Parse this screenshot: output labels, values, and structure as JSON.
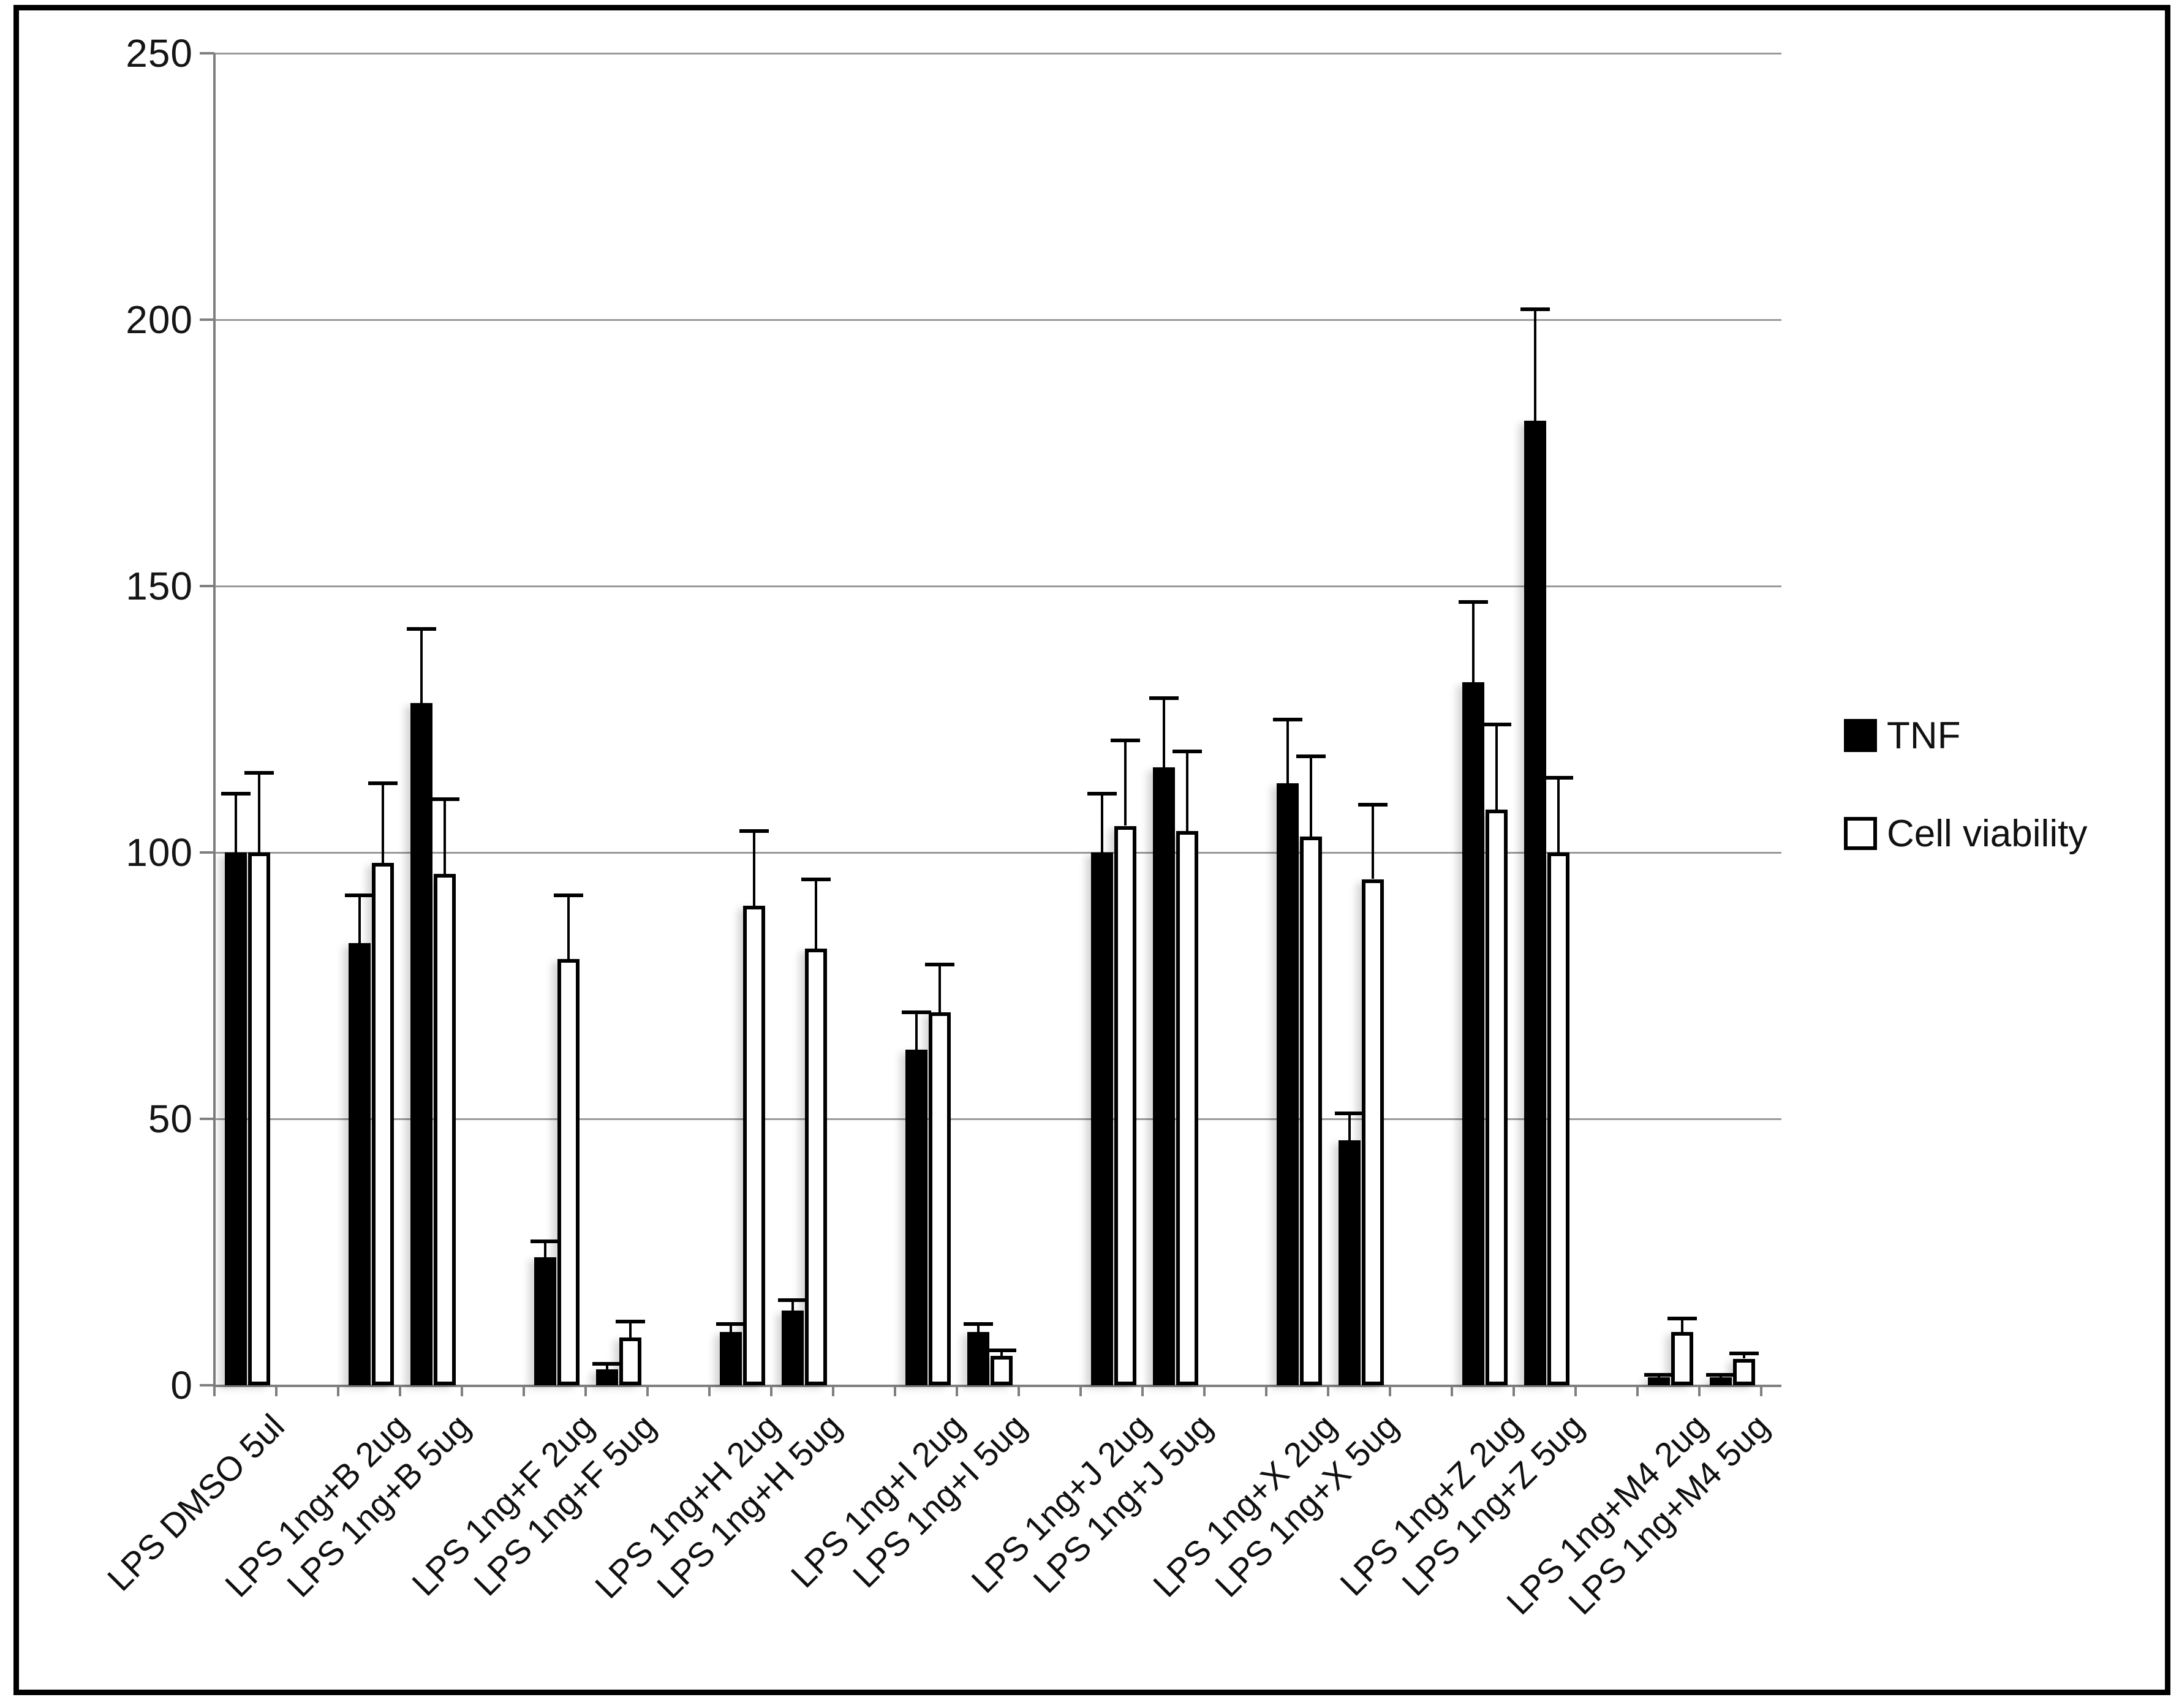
{
  "figure": {
    "background": "#ffffff",
    "frame_color": "#000000",
    "gridline_color": "#9a9a9a",
    "axis_color": "#7f7f7f"
  },
  "legend": {
    "items": [
      {
        "label": "TNF",
        "fill": "#000000",
        "border": "#000000"
      },
      {
        "label": "Cell viability",
        "fill": "#ffffff",
        "border": "#000000"
      }
    ]
  },
  "y_axis": {
    "tick_labels": [
      "0",
      "50",
      "100",
      "150",
      "200",
      "250"
    ]
  },
  "chart_data": {
    "type": "bar",
    "title": "",
    "xlabel": "",
    "ylabel": "",
    "ylim": [
      0,
      250
    ],
    "y_ticks": [
      0,
      50,
      100,
      150,
      200,
      250
    ],
    "grid": true,
    "legend_position": "right",
    "error_bars": "plus_direction",
    "categories": [
      "LPS DMSO 5ul",
      "LPS 1ng+B 2ug",
      "LPS 1ng+B 5ug",
      "LPS 1ng+F 2ug",
      "LPS 1ng+F 5ug",
      "LPS 1ng+H 2ug",
      "LPS 1ng+H 5ug",
      "LPS 1ng+I 2ug",
      "LPS 1ng+I 5ug",
      "LPS 1ng+J 2ug",
      "LPS 1ng+J 5ug",
      "LPS 1ng+X 2ug",
      "LPS 1ng+X 5ug",
      "LPS 1ng+Z 2ug",
      "LPS 1ng+Z 5ug",
      "LPS 1ng+M4 2ug",
      "LPS 1ng+M4 5ug"
    ],
    "series": [
      {
        "name": "TNF",
        "fill": "#000000",
        "values": [
          100,
          83,
          128,
          24,
          3,
          10,
          14,
          63,
          10,
          100,
          116,
          113,
          46,
          132,
          181,
          1.5,
          1.5
        ],
        "errors_plus": [
          11,
          9,
          14,
          3,
          1,
          1.5,
          2,
          7,
          1.5,
          11,
          13,
          12,
          5,
          15,
          21,
          0.5,
          0.5
        ]
      },
      {
        "name": "Cell viability",
        "fill": "#ffffff",
        "values": [
          100,
          98,
          96,
          80,
          9,
          90,
          82,
          70,
          5.5,
          105,
          104,
          103,
          95,
          108,
          100,
          10,
          5
        ],
        "errors_plus": [
          15,
          15,
          14,
          12,
          3,
          14,
          13,
          9,
          1,
          16,
          15,
          15,
          14,
          16,
          14,
          2.5,
          1
        ]
      }
    ]
  }
}
